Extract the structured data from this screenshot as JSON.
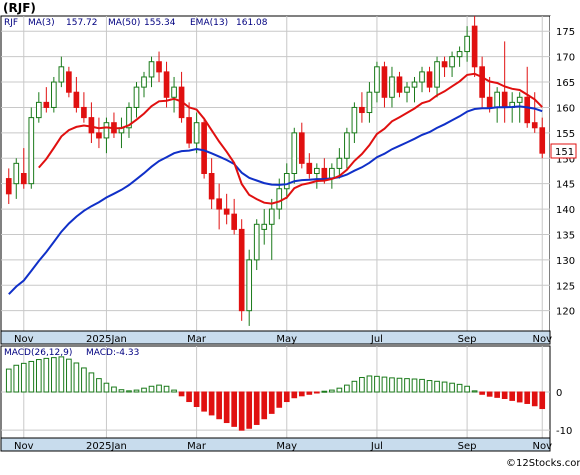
{
  "title": "(RJF)",
  "watermark": "©12Stocks.com",
  "colors": {
    "background": "#ffffff",
    "frame": "#000000",
    "axis_band": "#c8dced",
    "grid": "#c8c8c8",
    "ma_fast": "#e01010",
    "ma_slow": "#1030c8",
    "candle_up": "#1a7a1a",
    "candle_down": "#e01010",
    "macd_pos": "#1a7a1a",
    "macd_neg": "#e01010",
    "last_price_border": "#e01010"
  },
  "price_panel": {
    "legend": {
      "symbol": "RJF",
      "ma3_label": "MA(3)",
      "ma3_value": "157.72",
      "ma50_label": "MA(50)",
      "ma50_value": "155.34",
      "ema13_label": "EMA(13)",
      "ema13_value": "161.08"
    },
    "last_price_label": "151"
  },
  "macd_panel": {
    "label": "MACD(26,12,9)",
    "value_label": "MACD:-4.33"
  },
  "chart_data": [
    {
      "type": "candlestick",
      "title": "(RJF)",
      "x_tick_labels": [
        "Nov",
        "2025Jan",
        "Mar",
        "May",
        "Jul",
        "Sep",
        "Nov"
      ],
      "y_tick_labels": [
        "120",
        "125",
        "130",
        "135",
        "140",
        "145",
        "150",
        "155",
        "160",
        "165",
        "170",
        "175"
      ],
      "ylim": [
        116,
        178
      ],
      "grid": true,
      "series": [
        {
          "name": "MA(3)",
          "last_value": 157.72
        },
        {
          "name": "MA(50)",
          "last_value": 155.34
        },
        {
          "name": "EMA(13)",
          "last_value": 161.08
        }
      ],
      "candles": [
        [
          146,
          148,
          141,
          143
        ],
        [
          145,
          150,
          142,
          149
        ],
        [
          147,
          152,
          144,
          145
        ],
        [
          145,
          160,
          144,
          158
        ],
        [
          158,
          163,
          157,
          161
        ],
        [
          161,
          164,
          159,
          160
        ],
        [
          160,
          166,
          159,
          165
        ],
        [
          165,
          170,
          164,
          168
        ],
        [
          167,
          168,
          162,
          163
        ],
        [
          163,
          166,
          159,
          160
        ],
        [
          160,
          163,
          157,
          158
        ],
        [
          158,
          161,
          153,
          155
        ],
        [
          155,
          158,
          152,
          154
        ],
        [
          154,
          158,
          151,
          157
        ],
        [
          157,
          159,
          154,
          155
        ],
        [
          155,
          158,
          152,
          156
        ],
        [
          156,
          161,
          154,
          160
        ],
        [
          160,
          165,
          158,
          164
        ],
        [
          164,
          167,
          162,
          166
        ],
        [
          166,
          170,
          164,
          169
        ],
        [
          169,
          171,
          165,
          167
        ],
        [
          167,
          169,
          160,
          162
        ],
        [
          162,
          166,
          159,
          164
        ],
        [
          164,
          167,
          157,
          158
        ],
        [
          158,
          161,
          152,
          153
        ],
        [
          153,
          159,
          151,
          157
        ],
        [
          157,
          158,
          146,
          147
        ],
        [
          147,
          150,
          140,
          142
        ],
        [
          142,
          145,
          136,
          140
        ],
        [
          140,
          143,
          137,
          139
        ],
        [
          139,
          142,
          135,
          136
        ],
        [
          136,
          138,
          118,
          120
        ],
        [
          120,
          132,
          117,
          130
        ],
        [
          130,
          138,
          128,
          137
        ],
        [
          136,
          140,
          133,
          137
        ],
        [
          137,
          142,
          130,
          140
        ],
        [
          140,
          146,
          138,
          144
        ],
        [
          144,
          149,
          142,
          147
        ],
        [
          147,
          156,
          145,
          155
        ],
        [
          155,
          157,
          148,
          149
        ],
        [
          149,
          151,
          146,
          147
        ],
        [
          147,
          149,
          144,
          148
        ],
        [
          148,
          150,
          145,
          146
        ],
        [
          146,
          149,
          144,
          148
        ],
        [
          148,
          152,
          146,
          150
        ],
        [
          150,
          156,
          148,
          155
        ],
        [
          155,
          161,
          153,
          160
        ],
        [
          160,
          163,
          157,
          159
        ],
        [
          159,
          165,
          157,
          163
        ],
        [
          163,
          169,
          161,
          168
        ],
        [
          168,
          169,
          160,
          162
        ],
        [
          162,
          168,
          160,
          166
        ],
        [
          166,
          167,
          162,
          163
        ],
        [
          163,
          165,
          161,
          164
        ],
        [
          164,
          166,
          161,
          165
        ],
        [
          165,
          168,
          163,
          167
        ],
        [
          167,
          168,
          163,
          164
        ],
        [
          164,
          170,
          162,
          169
        ],
        [
          169,
          170,
          166,
          168
        ],
        [
          168,
          171,
          166,
          170
        ],
        [
          170,
          172,
          168,
          171
        ],
        [
          171,
          176,
          169,
          174
        ],
        [
          176,
          178,
          166,
          168
        ],
        [
          168,
          170,
          160,
          162
        ],
        [
          162,
          166,
          159,
          160
        ],
        [
          160,
          164,
          157,
          163
        ],
        [
          163,
          173,
          157,
          160
        ],
        [
          160,
          163,
          157,
          161
        ],
        [
          161,
          163,
          157,
          162
        ],
        [
          162,
          168,
          156,
          157
        ],
        [
          157,
          163,
          155,
          156
        ],
        [
          156,
          158,
          150,
          151
        ]
      ]
    },
    {
      "type": "bar",
      "title": "MACD(26,12,9)",
      "y_tick_labels": [
        "0",
        "-10"
      ],
      "ylim": [
        -11,
        11
      ],
      "grid": true,
      "values": [
        6,
        7,
        7.5,
        8,
        8.5,
        8.8,
        9,
        9.2,
        8.6,
        7.6,
        6.3,
        5,
        3.5,
        2.3,
        1.3,
        0.6,
        0.3,
        0.5,
        1,
        1.5,
        1.8,
        1.5,
        0.5,
        -1,
        -2.5,
        -3.8,
        -5,
        -6,
        -7,
        -8,
        -9,
        -10,
        -9.5,
        -8.5,
        -7,
        -5.6,
        -4,
        -2.5,
        -1.5,
        -1,
        -0.6,
        -0.2,
        0.2,
        0.5,
        1,
        1.8,
        2.8,
        3.8,
        4.2,
        4.1,
        3.9,
        3.7,
        3.6,
        3.5,
        3.4,
        3.3,
        3,
        2.8,
        2.6,
        2.3,
        2,
        1.5,
        0.3,
        -0.6,
        -1.1,
        -1.4,
        -1.7,
        -2.2,
        -2.6,
        -3,
        -3.6,
        -4.33
      ]
    }
  ]
}
